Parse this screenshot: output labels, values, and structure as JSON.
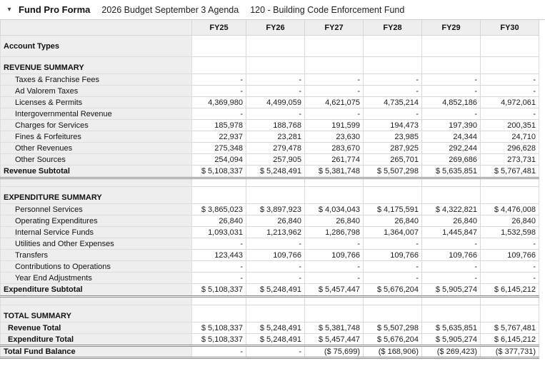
{
  "titlebar": {
    "collapse_icon": "▾",
    "title": "Fund Pro Forma",
    "budget_name": "2026 Budget September 3 Agenda",
    "fund_name": "120 - Building Code Enforcement Fund"
  },
  "table": {
    "corner_label": "",
    "columns": [
      "FY25",
      "FY26",
      "FY27",
      "FY28",
      "FY29",
      "FY30"
    ],
    "rows": [
      {
        "label": "Account Types",
        "type": "account",
        "cells": [
          "",
          "",
          "",
          "",
          "",
          ""
        ]
      },
      {
        "label": "REVENUE SUMMARY",
        "type": "section",
        "cells": [
          "",
          "",
          "",
          "",
          "",
          ""
        ]
      },
      {
        "label": "Taxes & Franchise Fees",
        "type": "detail",
        "cells": [
          "-",
          "-",
          "-",
          "-",
          "-",
          "-"
        ]
      },
      {
        "label": "Ad Valorem Taxes",
        "type": "detail",
        "cells": [
          "-",
          "-",
          "-",
          "-",
          "-",
          "-"
        ]
      },
      {
        "label": "Licenses & Permits",
        "type": "detail",
        "cells": [
          "4,369,980",
          "4,499,059",
          "4,621,075",
          "4,735,214",
          "4,852,186",
          "4,972,061"
        ]
      },
      {
        "label": "Intergovernmental Revenue",
        "type": "detail",
        "cells": [
          "-",
          "-",
          "-",
          "-",
          "-",
          "-"
        ]
      },
      {
        "label": "Charges for Services",
        "type": "detail",
        "cells": [
          "185,978",
          "188,768",
          "191,599",
          "194,473",
          "197,390",
          "200,351"
        ]
      },
      {
        "label": "Fines & Forfeitures",
        "type": "detail",
        "cells": [
          "22,937",
          "23,281",
          "23,630",
          "23,985",
          "24,344",
          "24,710"
        ]
      },
      {
        "label": "Other Revenues",
        "type": "detail",
        "cells": [
          "275,348",
          "279,478",
          "283,670",
          "287,925",
          "292,244",
          "296,628"
        ]
      },
      {
        "label": "Other Sources",
        "type": "detail",
        "cells": [
          "254,094",
          "257,905",
          "261,774",
          "265,701",
          "269,686",
          "273,731"
        ]
      },
      {
        "label": "Revenue Subtotal",
        "type": "subtotal",
        "cells": [
          "$ 5,108,337",
          "$ 5,248,491",
          "$ 5,381,748",
          "$ 5,507,298",
          "$ 5,635,851",
          "$ 5,767,481"
        ]
      },
      {
        "label": "",
        "type": "spacer",
        "cells": [
          "",
          "",
          "",
          "",
          "",
          ""
        ]
      },
      {
        "label": "EXPENDITURE SUMMARY",
        "type": "section",
        "cells": [
          "",
          "",
          "",
          "",
          "",
          ""
        ]
      },
      {
        "label": "Personnel Services",
        "type": "detail",
        "cells": [
          "$ 3,865,023",
          "$ 3,897,923",
          "$ 4,034,043",
          "$ 4,175,591",
          "$ 4,322,821",
          "$ 4,476,008"
        ]
      },
      {
        "label": "Operating Expenditures",
        "type": "detail",
        "cells": [
          "26,840",
          "26,840",
          "26,840",
          "26,840",
          "26,840",
          "26,840"
        ]
      },
      {
        "label": "Internal Service Funds",
        "type": "detail",
        "cells": [
          "1,093,031",
          "1,213,962",
          "1,286,798",
          "1,364,007",
          "1,445,847",
          "1,532,598"
        ]
      },
      {
        "label": "Utilities and Other Expenses",
        "type": "detail",
        "cells": [
          "-",
          "-",
          "-",
          "-",
          "-",
          "-"
        ]
      },
      {
        "label": "Transfers",
        "type": "detail",
        "cells": [
          "123,443",
          "109,766",
          "109,766",
          "109,766",
          "109,766",
          "109,766"
        ]
      },
      {
        "label": "Contributions to Operations",
        "type": "detail",
        "cells": [
          "-",
          "-",
          "-",
          "-",
          "-",
          "-"
        ]
      },
      {
        "label": "Year End Adjustments",
        "type": "detail",
        "cells": [
          "-",
          "-",
          "-",
          "-",
          "-",
          "-"
        ]
      },
      {
        "label": "Expenditure Subtotal",
        "type": "subtotal",
        "cells": [
          "$ 5,108,337",
          "$ 5,248,491",
          "$ 5,457,447",
          "$ 5,676,204",
          "$ 5,905,274",
          "$ 6,145,212"
        ]
      },
      {
        "label": "",
        "type": "spacer",
        "cells": [
          "",
          "",
          "",
          "",
          "",
          ""
        ]
      },
      {
        "label": "TOTAL SUMMARY",
        "type": "section",
        "cells": [
          "",
          "",
          "",
          "",
          "",
          ""
        ]
      },
      {
        "label": "Revenue Total",
        "type": "totalrow",
        "cells": [
          "$ 5,108,337",
          "$ 5,248,491",
          "$ 5,381,748",
          "$ 5,507,298",
          "$ 5,635,851",
          "$ 5,767,481"
        ]
      },
      {
        "label": "Expenditure Total",
        "type": "totalrow-end",
        "cells": [
          "$ 5,108,337",
          "$ 5,248,491",
          "$ 5,457,447",
          "$ 5,676,204",
          "$ 5,905,274",
          "$ 6,145,212"
        ]
      },
      {
        "label": "Total Fund Balance",
        "type": "grandtotal",
        "cells": [
          "-",
          "-",
          "($ 75,699)",
          "($ 168,906)",
          "($ 269,423)",
          "($ 377,731)"
        ]
      }
    ]
  }
}
